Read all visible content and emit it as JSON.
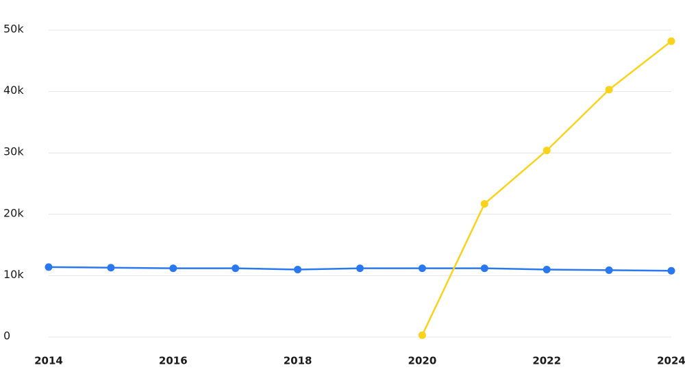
{
  "chart_data": {
    "type": "line",
    "x": [
      2014,
      2015,
      2016,
      2017,
      2018,
      2019,
      2020,
      2021,
      2022,
      2023,
      2024
    ],
    "series": [
      {
        "color": "#2a78f0",
        "values": [
          11400,
          11300,
          11200,
          11200,
          11000,
          11200,
          11200,
          11200,
          11000,
          10900,
          10800
        ]
      },
      {
        "color": "#f9d21c",
        "values": [
          null,
          null,
          null,
          null,
          null,
          null,
          300,
          21700,
          30400,
          40300,
          48200
        ]
      }
    ],
    "xlim": [
      2014,
      2024
    ],
    "xticks": [
      2014,
      2016,
      2018,
      2020,
      2022,
      2024
    ],
    "ylim": [
      0,
      50000
    ],
    "yticks": [
      {
        "value": 0,
        "label": "0"
      },
      {
        "value": 10000,
        "label": "10k"
      },
      {
        "value": 20000,
        "label": "20k"
      },
      {
        "value": 30000,
        "label": "30k"
      },
      {
        "value": 40000,
        "label": "40k"
      },
      {
        "value": 50000,
        "label": "50k"
      }
    ],
    "grid": true
  }
}
